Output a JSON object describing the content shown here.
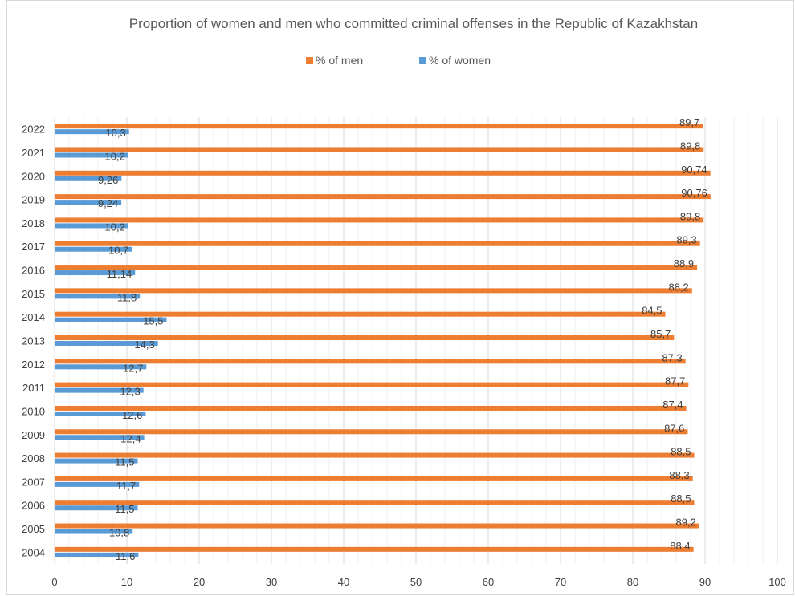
{
  "chart_data": {
    "type": "bar",
    "orientation": "horizontal",
    "title": "Proportion of women and men who committed criminal offenses in the Republic of Kazakhstan",
    "categories": [
      "2004",
      "2005",
      "2006",
      "2007",
      "2008",
      "2009",
      "2010",
      "2011",
      "2012",
      "2013",
      "2014",
      "2015",
      "2016",
      "2017",
      "2018",
      "2019",
      "2020",
      "2021",
      "2022"
    ],
    "series": [
      {
        "name": "% of men",
        "color": "#ED7D31",
        "values": [
          88.4,
          89.2,
          88.5,
          88.3,
          88.5,
          87.6,
          87.4,
          87.7,
          87.3,
          85.7,
          84.5,
          88.2,
          88.9,
          89.3,
          89.8,
          90.76,
          90.74,
          89.8,
          89.7
        ],
        "labels": [
          "88,4",
          "89,2",
          "88,5",
          "88,3",
          "88,5",
          "87,6",
          "87,4",
          "87,7",
          "87,3",
          "85,7",
          "84,5",
          "88,2",
          "88,9",
          "89,3",
          "89,8",
          "90,76",
          "90,74",
          "89,8",
          "89,7"
        ]
      },
      {
        "name": "% of women",
        "color": "#5B9BD5",
        "values": [
          11.6,
          10.8,
          11.5,
          11.7,
          11.5,
          12.4,
          12.6,
          12.3,
          12.7,
          14.3,
          15.5,
          11.8,
          11.14,
          10.7,
          10.2,
          9.24,
          9.26,
          10.2,
          10.3
        ],
        "labels": [
          "11,6",
          "10,8",
          "11,5",
          "11,7",
          "11,5",
          "12,4",
          "12,6",
          "12,3",
          "12,7",
          "14,3",
          "15,5",
          "11,8",
          "11,14",
          "10,7",
          "10,2",
          "9,24",
          "9,26",
          "10,2",
          "10,3"
        ]
      }
    ],
    "xlim": [
      0,
      100
    ],
    "x_ticks": [
      0,
      10,
      20,
      30,
      40,
      50,
      60,
      70,
      80,
      90,
      100
    ],
    "grid": true,
    "legend_position": "top"
  }
}
